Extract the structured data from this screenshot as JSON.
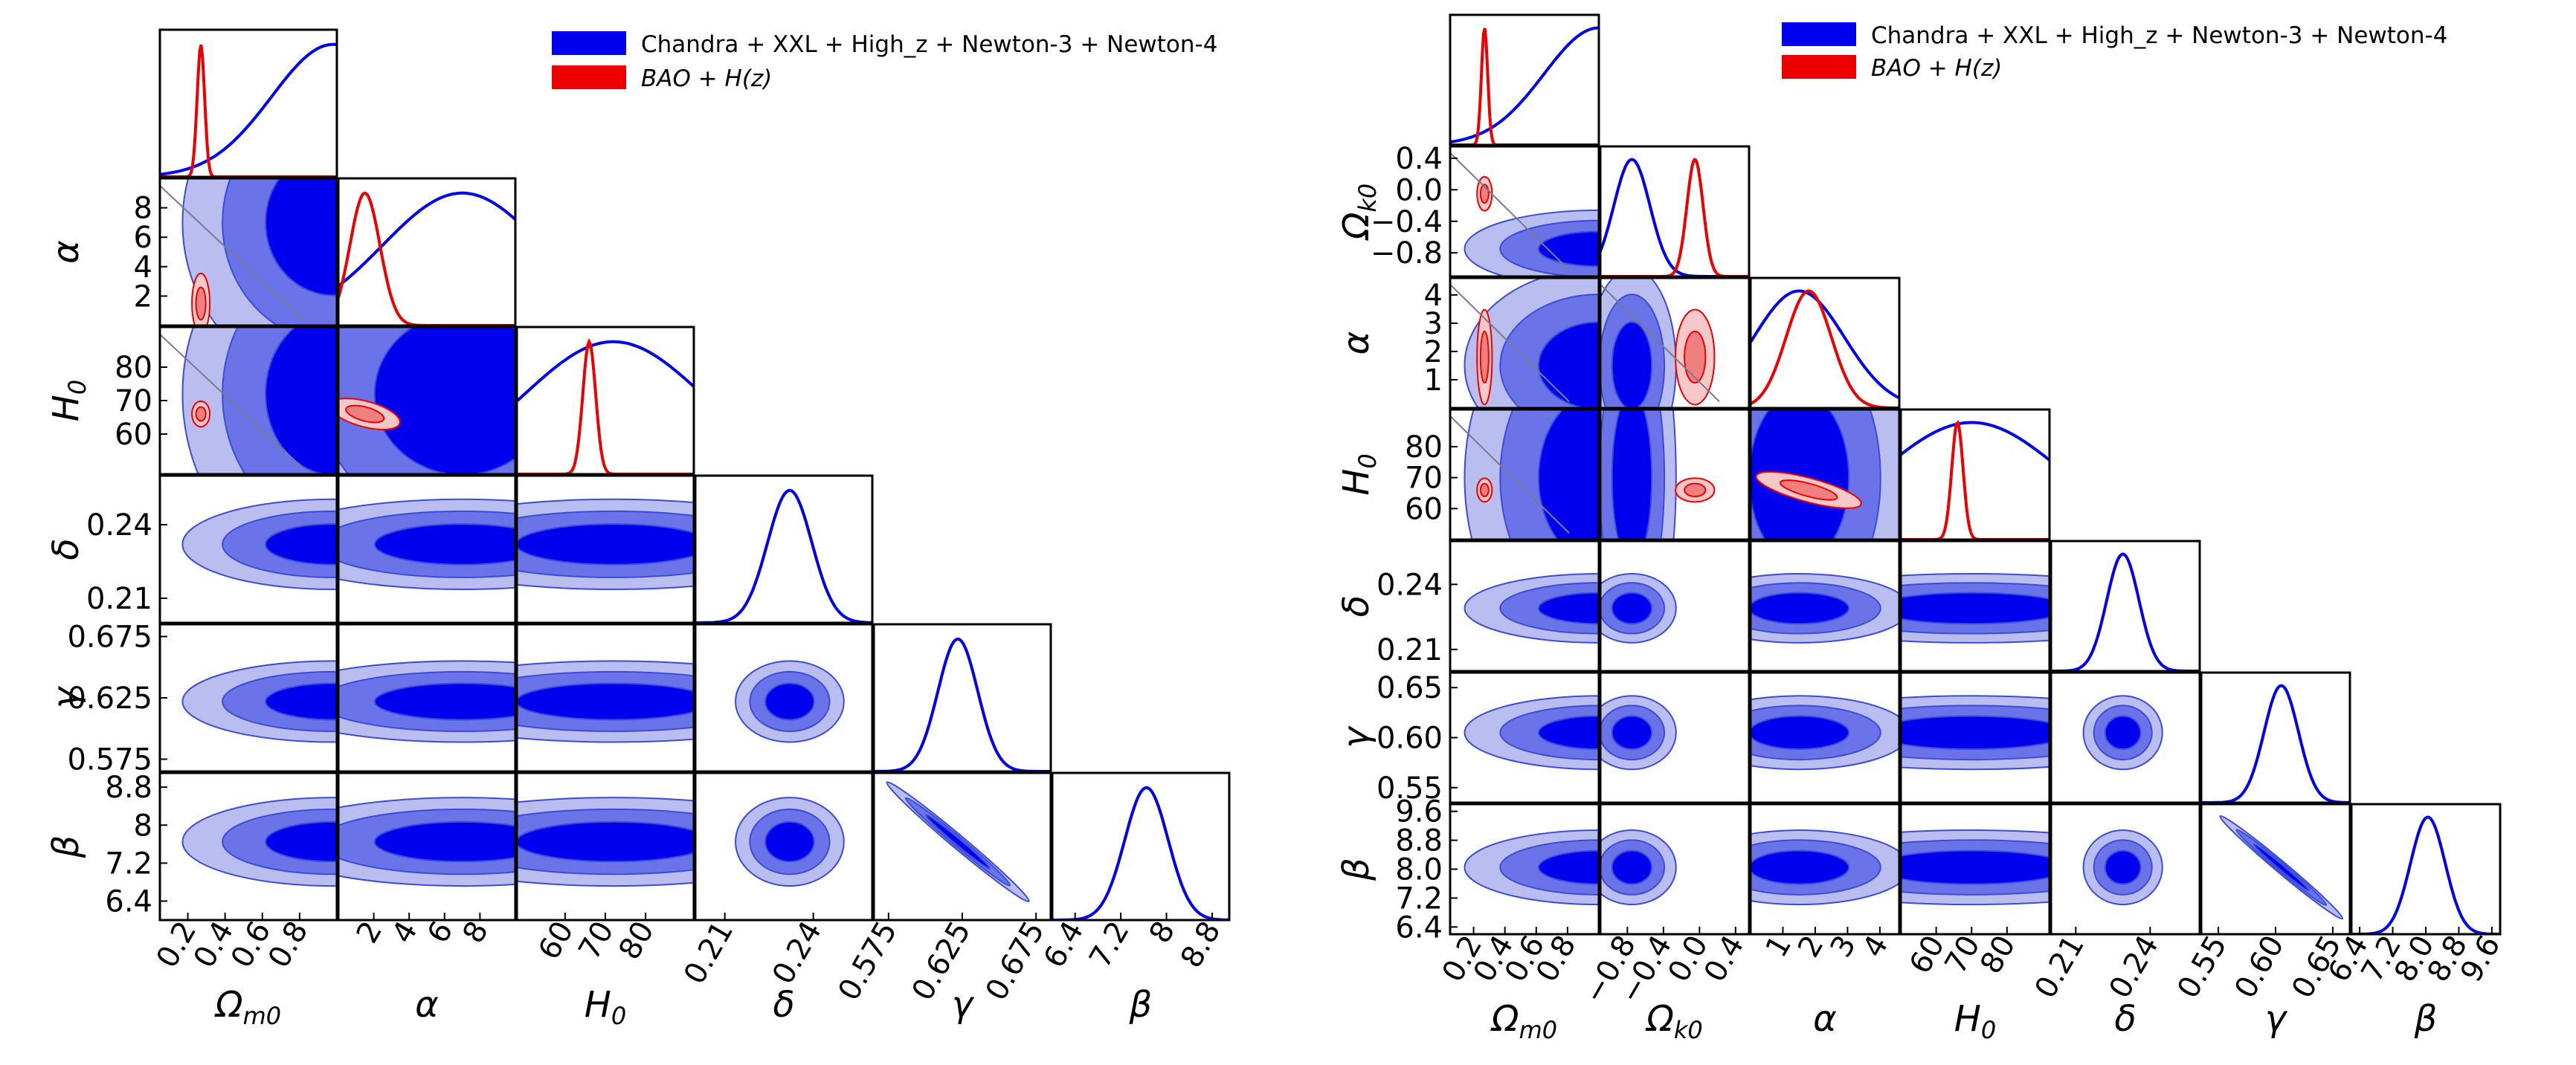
{
  "legend": {
    "series_a": "Chandra + XXL + High_z + Newton-3 + Newton-4",
    "series_b": "BAO + H(z)"
  },
  "colors": {
    "series_a": "#0000ee",
    "series_a_mid": "#6a74e8",
    "series_a_light": "#b9bdf0",
    "series_b": "#ee0000",
    "series_b_mid": "#f08080",
    "series_b_light": "#f7c8c8",
    "degeneracy_line": "#7a7a8e"
  },
  "chart_data": [
    {
      "type": "corner",
      "params": [
        {
          "name": "Ωm0",
          "label": "Ω_{m0}",
          "range": [
            0.05,
            1.0
          ],
          "ticks": [
            0.2,
            0.4,
            0.6,
            0.8
          ],
          "tick_labels": [
            "0.2",
            "0.4",
            "0.6",
            "0.8"
          ]
        },
        {
          "name": "α",
          "label": "α",
          "range": [
            0,
            10
          ],
          "ticks": [
            2,
            4,
            6,
            8
          ],
          "tick_labels": [
            "2",
            "4",
            "6",
            "8"
          ]
        },
        {
          "name": "H0",
          "label": "H_0",
          "range": [
            48,
            92
          ],
          "ticks": [
            60,
            70,
            80
          ],
          "tick_labels": [
            "60",
            "70",
            "80"
          ]
        },
        {
          "name": "δ",
          "label": "δ",
          "range": [
            0.2,
            0.26
          ],
          "ticks": [
            0.21,
            0.24
          ],
          "tick_labels": [
            "0.21",
            "0.24"
          ]
        },
        {
          "name": "γ",
          "label": "γ",
          "range": [
            0.565,
            0.685
          ],
          "ticks": [
            0.575,
            0.625,
            0.675
          ],
          "tick_labels": [
            "0.575",
            "0.625",
            "0.675"
          ]
        },
        {
          "name": "β",
          "label": "β",
          "range": [
            6.0,
            9.1
          ],
          "ticks": [
            6.4,
            7.2,
            8.0,
            8.8
          ],
          "tick_labels": [
            "6.4",
            "7.2",
            "8",
            "8.8"
          ]
        }
      ],
      "series": [
        {
          "name": "Chandra + XXL + High_z + Newton-3 + Newton-4",
          "color_key": "series_a",
          "marginals": [
            {
              "center": 0.98,
              "sigma": 0.33
            },
            {
              "center": 7.0,
              "sigma": 4.5
            },
            {
              "center": 72,
              "sigma": 22
            },
            {
              "center": 0.232,
              "sigma": 0.0075
            },
            {
              "center": 0.622,
              "sigma": 0.0135
            },
            {
              "center": 7.65,
              "sigma": 0.38
            }
          ]
        },
        {
          "name": "BAO + H(z)",
          "color_key": "series_b",
          "marginals": [
            {
              "center": 0.27,
              "sigma": 0.02
            },
            {
              "center": 1.5,
              "sigma": 0.85
            },
            {
              "center": 66,
              "sigma": 1.6
            },
            null,
            null,
            null
          ]
        }
      ]
    },
    {
      "type": "corner",
      "params": [
        {
          "name": "Ωm0",
          "label": "Ω_{m0}",
          "range": [
            0.05,
            1.0
          ],
          "ticks": [
            0.2,
            0.4,
            0.6,
            0.8
          ],
          "tick_labels": [
            "0.2",
            "0.4",
            "0.6",
            "0.8"
          ]
        },
        {
          "name": "Ωk0",
          "label": "Ω_{k0}",
          "range": [
            -1.1,
            0.55
          ],
          "ticks": [
            -0.8,
            -0.4,
            0.0,
            0.4
          ],
          "tick_labels": [
            "−0.8",
            "−0.4",
            "0.0",
            "0.4"
          ]
        },
        {
          "name": "α",
          "label": "α",
          "range": [
            0,
            4.6
          ],
          "ticks": [
            1,
            2,
            3,
            4
          ],
          "tick_labels": [
            "1",
            "2",
            "3",
            "4"
          ]
        },
        {
          "name": "H0",
          "label": "H_0",
          "range": [
            50,
            92
          ],
          "ticks": [
            60,
            70,
            80
          ],
          "tick_labels": [
            "60",
            "70",
            "80"
          ]
        },
        {
          "name": "δ",
          "label": "δ",
          "range": [
            0.2,
            0.26
          ],
          "ticks": [
            0.21,
            0.24
          ],
          "tick_labels": [
            "0.21",
            "0.24"
          ]
        },
        {
          "name": "γ",
          "label": "γ",
          "range": [
            0.535,
            0.665
          ],
          "ticks": [
            0.55,
            0.6,
            0.65
          ],
          "tick_labels": [
            "0.55",
            "0.60",
            "0.65"
          ]
        },
        {
          "name": "β",
          "label": "β",
          "range": [
            6.2,
            9.8
          ],
          "ticks": [
            6.4,
            7.2,
            8.0,
            8.8,
            9.6
          ],
          "tick_labels": [
            "6.4",
            "7.2",
            "8.0",
            "8.8",
            "9.6"
          ]
        }
      ],
      "series": [
        {
          "name": "Chandra + XXL + High_z + Newton-3 + Newton-4",
          "color_key": "series_a",
          "marginals": [
            {
              "center": 1.0,
              "sigma": 0.35
            },
            {
              "center": -0.75,
              "sigma": 0.2
            },
            {
              "center": 1.5,
              "sigma": 1.4
            },
            {
              "center": 70,
              "sigma": 25
            },
            {
              "center": 0.229,
              "sigma": 0.0065
            },
            {
              "center": 0.605,
              "sigma": 0.015
            },
            {
              "center": 8.05,
              "sigma": 0.42
            }
          ]
        },
        {
          "name": "BAO + H(z)",
          "color_key": "series_b",
          "marginals": [
            {
              "center": 0.27,
              "sigma": 0.02
            },
            {
              "center": -0.05,
              "sigma": 0.09
            },
            {
              "center": 1.8,
              "sigma": 0.7
            },
            {
              "center": 66,
              "sigma": 1.6
            },
            null,
            null,
            null
          ]
        }
      ]
    }
  ]
}
